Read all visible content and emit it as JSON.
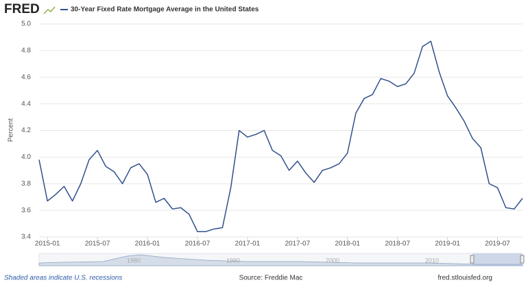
{
  "chart_data": {
    "type": "line",
    "logo": "FRED",
    "title": "30-Year Fixed Rate Mortgage Average in the United States",
    "ylabel": "Percent",
    "note": "Shaded areas indicate U.S. recessions",
    "source": "Source: Freddie Mac",
    "site": "fred.stlouisfed.org",
    "navigator_labels": [
      "1980",
      "1990",
      "2000",
      "2010"
    ],
    "x": [
      "2014-12",
      "2015-01",
      "2015-02",
      "2015-03",
      "2015-04",
      "2015-05",
      "2015-06",
      "2015-07",
      "2015-08",
      "2015-09",
      "2015-10",
      "2015-11",
      "2015-12",
      "2016-01",
      "2016-02",
      "2016-03",
      "2016-04",
      "2016-05",
      "2016-06",
      "2016-07",
      "2016-08",
      "2016-09",
      "2016-10",
      "2016-11",
      "2016-12",
      "2017-01",
      "2017-02",
      "2017-03",
      "2017-04",
      "2017-05",
      "2017-06",
      "2017-07",
      "2017-08",
      "2017-09",
      "2017-10",
      "2017-11",
      "2017-12",
      "2018-01",
      "2018-02",
      "2018-03",
      "2018-04",
      "2018-05",
      "2018-06",
      "2018-07",
      "2018-08",
      "2018-09",
      "2018-10",
      "2018-11",
      "2018-12",
      "2019-01",
      "2019-02",
      "2019-03",
      "2019-04",
      "2019-05",
      "2019-06",
      "2019-07",
      "2019-08",
      "2019-09",
      "2019-10"
    ],
    "series": [
      {
        "name": "30-Year Fixed Rate Mortgage Average in the United States",
        "color": "#2f4f8a",
        "values": [
          3.98,
          3.67,
          3.72,
          3.78,
          3.67,
          3.8,
          3.98,
          4.05,
          3.93,
          3.89,
          3.8,
          3.92,
          3.95,
          3.87,
          3.66,
          3.69,
          3.61,
          3.62,
          3.57,
          3.44,
          3.44,
          3.46,
          3.47,
          3.77,
          4.2,
          4.15,
          4.17,
          4.2,
          4.05,
          4.01,
          3.9,
          3.97,
          3.88,
          3.81,
          3.9,
          3.92,
          3.95,
          4.03,
          4.33,
          4.44,
          4.47,
          4.59,
          4.57,
          4.53,
          4.55,
          4.63,
          4.83,
          4.87,
          4.64,
          4.46,
          4.37,
          4.27,
          4.14,
          4.07,
          3.8,
          3.77,
          3.62,
          3.61,
          3.69
        ]
      }
    ],
    "xlim": [
      "2014-12",
      "2019-10"
    ],
    "xticks": [
      "2015-01",
      "2015-07",
      "2016-01",
      "2016-07",
      "2017-01",
      "2017-07",
      "2018-01",
      "2018-07",
      "2019-01",
      "2019-07"
    ],
    "ylim": [
      3.4,
      5.0
    ],
    "yticks": [
      3.4,
      3.6,
      3.8,
      {
        "value": 4.0,
        "label": "4.0"
      },
      4.2,
      4.4,
      4.6,
      4.8,
      {
        "value": 5.0,
        "label": "5.0"
      }
    ],
    "grid": true
  }
}
